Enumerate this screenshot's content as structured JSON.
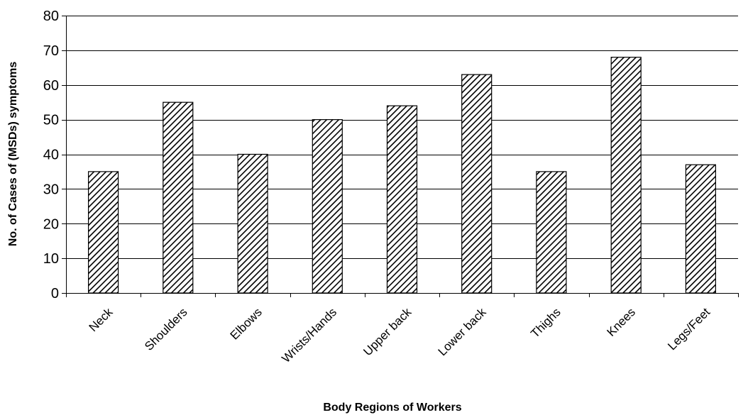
{
  "chart_data": {
    "type": "bar",
    "title": "",
    "xlabel": "Body Regions of Workers",
    "ylabel": "No. of Cases of (MSDs) symptoms",
    "categories": [
      "Neck",
      "Shoulders",
      "Elbows",
      "Wrists/Hands",
      "Upper back",
      "Lower back",
      "Thighs",
      "Knees",
      "Legs/Feet"
    ],
    "values": [
      35,
      55,
      40,
      50,
      54,
      63,
      35,
      68,
      37
    ],
    "ylim": [
      0,
      80
    ],
    "yticks": [
      0,
      10,
      20,
      30,
      40,
      50,
      60,
      70,
      80
    ],
    "grid": true,
    "legend": "none",
    "bar_fill": "diagonal-hatch",
    "colors": {
      "bar_stroke": "#000000",
      "hatch": "#000000",
      "grid": "#000000",
      "background": "#ffffff"
    }
  }
}
